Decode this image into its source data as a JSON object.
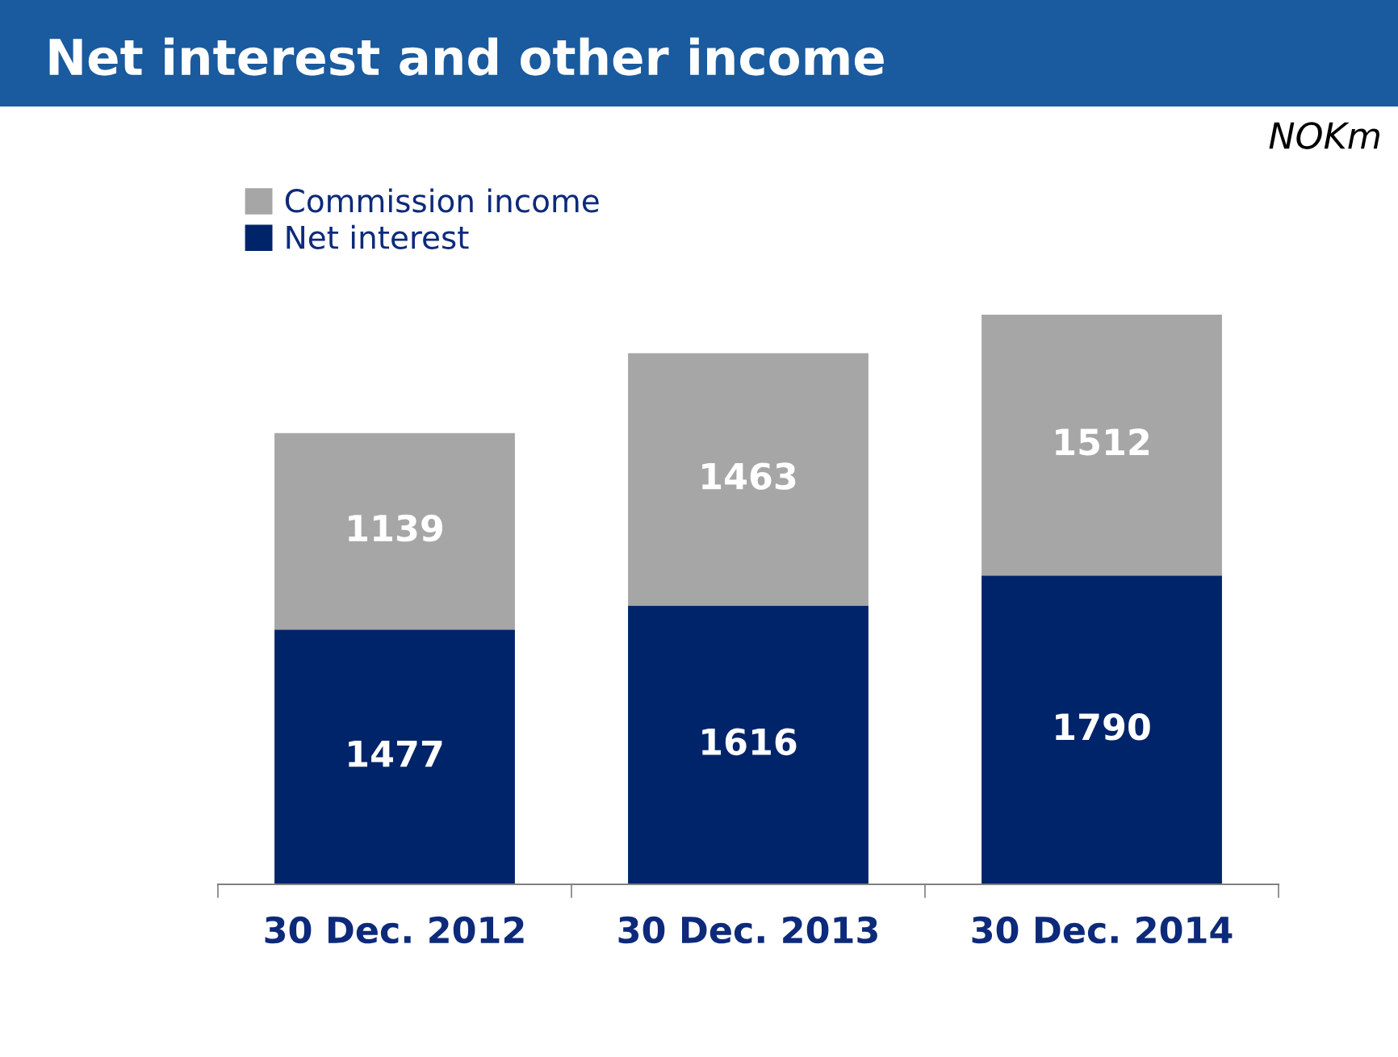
{
  "chart_data": {
    "type": "bar",
    "title": "Net interest and other income",
    "annotations": [
      "NOKm"
    ],
    "categories": [
      "30 Dec. 2012",
      "30 Dec. 2013",
      "30 Dec. 2014"
    ],
    "stacked": true,
    "data_labels": true,
    "legend": "top left",
    "grid": false,
    "series": [
      {
        "name": "Net interest",
        "color": "#002469",
        "values": [
          1477,
          1616,
          1790
        ]
      },
      {
        "name": "Commission income",
        "color": "#a6a6a6",
        "values": [
          1139,
          1463,
          1512
        ]
      }
    ]
  }
}
